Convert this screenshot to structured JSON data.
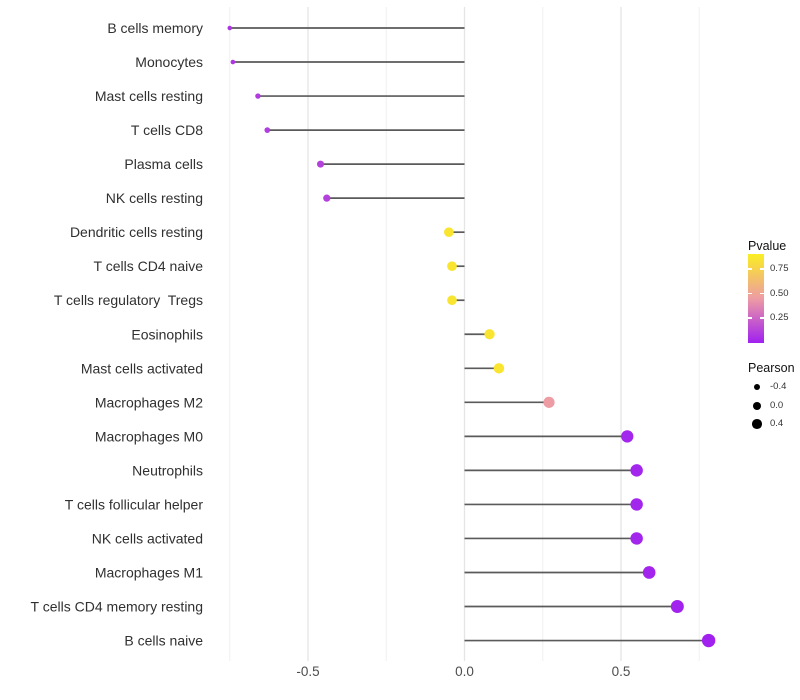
{
  "chart_data": {
    "type": "scatter",
    "variant": "lollipop",
    "title": "",
    "xlabel": "",
    "ylabel": "",
    "x_ticks": [
      -0.5,
      0.0,
      0.5
    ],
    "x_tick_labels": [
      "-0.5",
      "0.0",
      "0.5"
    ],
    "x_minor_ticks": [
      -0.75,
      -0.25,
      0.25,
      0.75
    ],
    "xlim": [
      -0.82,
      0.85
    ],
    "grid": true,
    "legend_position": "right",
    "pvalue_domain": [
      0,
      0.9
    ],
    "points": [
      {
        "category": "B cells memory",
        "pearson": -0.75,
        "pvalue": 0.08
      },
      {
        "category": "Monocytes",
        "pearson": -0.74,
        "pvalue": 0.08
      },
      {
        "category": "Mast cells resting",
        "pearson": -0.66,
        "pvalue": 0.1
      },
      {
        "category": "T cells CD8",
        "pearson": -0.63,
        "pvalue": 0.1
      },
      {
        "category": "Plasma cells",
        "pearson": -0.46,
        "pvalue": 0.12
      },
      {
        "category": "NK cells resting",
        "pearson": -0.44,
        "pvalue": 0.12
      },
      {
        "category": "Dendritic cells resting",
        "pearson": -0.05,
        "pvalue": 0.85
      },
      {
        "category": "T cells CD4 naive",
        "pearson": -0.04,
        "pvalue": 0.85
      },
      {
        "category": "T cells regulatory  Tregs",
        "pearson": -0.04,
        "pvalue": 0.85
      },
      {
        "category": "Eosinophils",
        "pearson": 0.08,
        "pvalue": 0.85
      },
      {
        "category": "Mast cells activated",
        "pearson": 0.11,
        "pvalue": 0.85
      },
      {
        "category": "Macrophages M2",
        "pearson": 0.27,
        "pvalue": 0.45
      },
      {
        "category": "Macrophages M0",
        "pearson": 0.52,
        "pvalue": 0.02
      },
      {
        "category": "Neutrophils",
        "pearson": 0.55,
        "pvalue": 0.02
      },
      {
        "category": "T cells follicular helper",
        "pearson": 0.55,
        "pvalue": 0.02
      },
      {
        "category": "NK cells activated",
        "pearson": 0.55,
        "pvalue": 0.02
      },
      {
        "category": "Macrophages M1",
        "pearson": 0.59,
        "pvalue": 0.015
      },
      {
        "category": "T cells CD4 memory resting",
        "pearson": 0.68,
        "pvalue": 0.01
      },
      {
        "category": "B cells naive",
        "pearson": 0.78,
        "pvalue": 0.005
      }
    ]
  },
  "legend": {
    "pvalue": {
      "title": "Pvalue",
      "ticks": [
        "0.75",
        "0.50",
        "0.25"
      ],
      "tick_values": [
        0.75,
        0.5,
        0.25
      ]
    },
    "pearson": {
      "title": "Pearson",
      "items": [
        {
          "label": "-0.4",
          "value": -0.4
        },
        {
          "label": "0.0",
          "value": 0.0
        },
        {
          "label": "0.4",
          "value": 0.4
        }
      ]
    }
  },
  "colors": {
    "gradient_low": "#A020F0",
    "gradient_mid": "#EE9CA4",
    "gradient_high": "#FAEE22",
    "stem": "#5a5a5a",
    "grid_major": "#e5e5e5",
    "grid_minor": "#f0f0f0",
    "x_axis_text": "#4d4d4d",
    "y_axis_text": "#303030",
    "legend_dot": "#000000",
    "background": "#ffffff"
  }
}
